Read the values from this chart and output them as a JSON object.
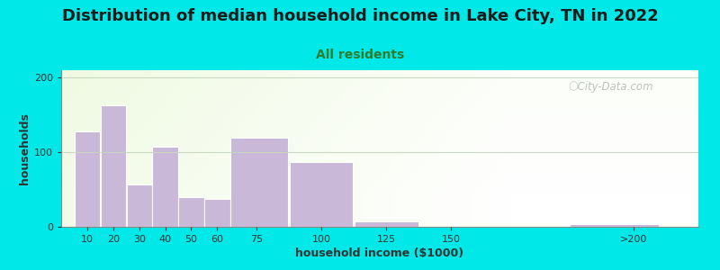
{
  "title": "Distribution of median household income in Lake City, TN in 2022",
  "subtitle": "All residents",
  "xlabel": "household income ($1000)",
  "ylabel": "households",
  "bar_labels": [
    "10",
    "20",
    "30",
    "40",
    "50",
    "60",
    "75",
    "100",
    "125",
    "150",
    ">200"
  ],
  "bar_values": [
    128,
    163,
    57,
    108,
    40,
    38,
    120,
    87,
    7,
    0,
    4
  ],
  "bar_color": "#c9b8d8",
  "bar_edgecolor": "#ffffff",
  "ylim": [
    0,
    210
  ],
  "yticks": [
    0,
    100,
    200
  ],
  "outer_bg": "#00e8e8",
  "plot_bg_color": "#edf5e1",
  "title_fontsize": 13,
  "subtitle_fontsize": 10,
  "subtitle_color": "#2e7d2e",
  "axis_label_fontsize": 9,
  "tick_fontsize": 8,
  "watermark_text": "City-Data.com",
  "watermark_color": "#b0b8b0",
  "grid_color": "#c8d8c0",
  "xlim_left": 0,
  "xlim_right": 245
}
